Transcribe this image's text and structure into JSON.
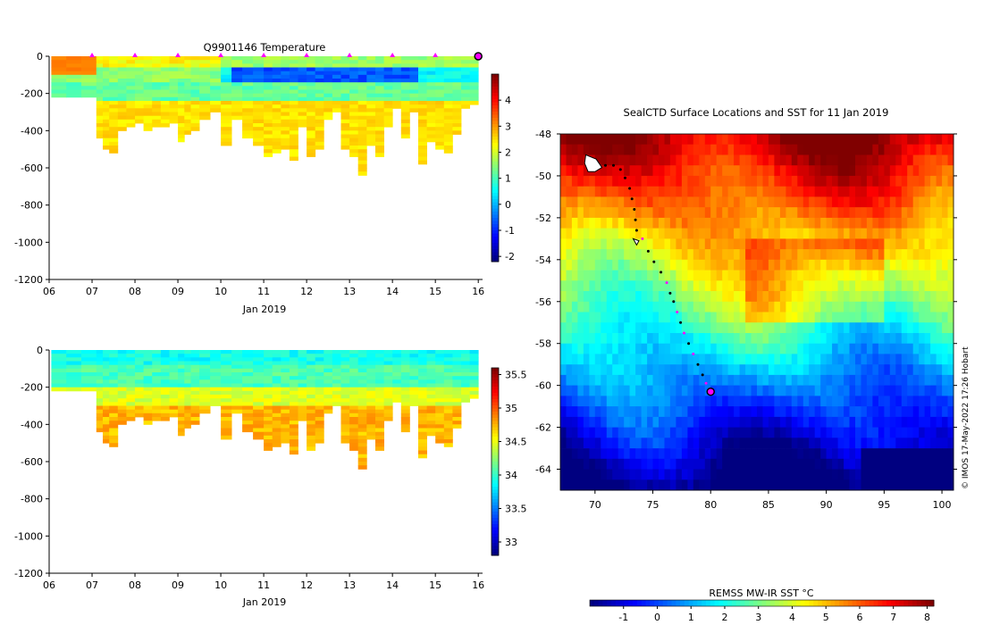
{
  "chart_data": [
    {
      "type": "heatmap",
      "title": "Q9901146  Temperature",
      "xlabel": "Jan 2019",
      "ylabel": "",
      "xticks": [
        "06",
        "07",
        "08",
        "09",
        "10",
        "11",
        "12",
        "13",
        "14",
        "15",
        "16"
      ],
      "xlim": [
        6,
        16.1
      ],
      "ylim": [
        -1200,
        0
      ],
      "yticks": [
        0,
        -200,
        -400,
        -600,
        -800,
        -1000,
        -1200
      ],
      "colorbar": {
        "ticks": [
          4,
          3,
          2,
          1,
          0,
          -1,
          -2
        ],
        "range": [
          -2.2,
          5.0
        ],
        "colormap": "jet"
      },
      "surface_markers_day": [
        7,
        8,
        9,
        10,
        11,
        12,
        13,
        14,
        15
      ],
      "highlight_marker_day": 16,
      "profile_days": [
        6.05,
        6.4,
        6.75,
        7.1,
        7.25,
        7.4,
        7.6,
        7.8,
        8.0,
        8.2,
        8.4,
        8.6,
        8.8,
        9.0,
        9.15,
        9.3,
        9.5,
        9.75,
        10.0,
        10.25,
        10.5,
        10.75,
        11.0,
        11.2,
        11.4,
        11.6,
        11.8,
        12.0,
        12.2,
        12.4,
        12.6,
        12.8,
        13.0,
        13.2,
        13.4,
        13.6,
        13.8,
        14.0,
        14.2,
        14.4,
        14.6,
        14.8,
        15.0,
        15.2,
        15.4,
        15.6,
        15.8,
        16.0
      ],
      "profile_max_depth_m": [
        220,
        205,
        215,
        430,
        485,
        515,
        400,
        365,
        360,
        395,
        380,
        375,
        355,
        445,
        405,
        395,
        330,
        285,
        480,
        335,
        425,
        475,
        530,
        510,
        495,
        545,
        365,
        535,
        500,
        335,
        285,
        485,
        525,
        630,
        465,
        540,
        375,
        265,
        440,
        290,
        575,
        455,
        490,
        510,
        420,
        280,
        245,
        240
      ]
    },
    {
      "type": "heatmap",
      "title": "",
      "xlabel": "Jan 2019",
      "ylabel": "",
      "xticks": [
        "06",
        "07",
        "08",
        "09",
        "10",
        "11",
        "12",
        "13",
        "14",
        "15",
        "16"
      ],
      "xlim": [
        6,
        16.1
      ],
      "ylim": [
        -1200,
        0
      ],
      "yticks": [
        0,
        -200,
        -400,
        -600,
        -800,
        -1000,
        -1200
      ],
      "colorbar": {
        "ticks": [
          35.5,
          35,
          34.5,
          34,
          33.5,
          33
        ],
        "range": [
          32.8,
          35.6
        ],
        "colormap": "jet"
      }
    },
    {
      "type": "heatmap",
      "title": "SealCTD Surface Locations and SST for 11 Jan 2019",
      "xlabel": "",
      "ylabel": "",
      "xlim": [
        67,
        101
      ],
      "ylim": [
        -65,
        -48
      ],
      "xticks": [
        70,
        75,
        80,
        85,
        90,
        95,
        100
      ],
      "yticks": [
        -48,
        -50,
        -52,
        -54,
        -56,
        -58,
        -60,
        -62,
        -64
      ],
      "colorbar": {
        "label": "REMSS MW-IR SST °C",
        "ticks": [
          -1,
          0,
          1,
          2,
          3,
          4,
          5,
          6,
          7,
          8
        ],
        "range": [
          -2,
          8.2
        ],
        "colormap": "jet"
      },
      "track_lon": [
        70.9,
        71.6,
        72.2,
        72.6,
        73.0,
        73.2,
        73.4,
        73.5,
        73.6,
        74.1,
        74.6,
        75.1,
        75.7,
        76.2,
        76.5,
        76.8,
        77.1,
        77.4,
        77.7,
        78.1,
        78.5,
        78.9,
        79.3,
        79.6,
        80.0
      ],
      "track_lat": [
        -49.5,
        -49.5,
        -49.7,
        -50.1,
        -50.6,
        -51.1,
        -51.6,
        -52.1,
        -52.6,
        -53.0,
        -53.6,
        -54.1,
        -54.6,
        -55.1,
        -55.6,
        -56.0,
        -56.5,
        -57.0,
        -57.5,
        -58.0,
        -58.5,
        -59.0,
        -59.5,
        -59.9,
        -60.3
      ],
      "track_magenta_idx": [
        9,
        13,
        16,
        18,
        20,
        23
      ],
      "end_marker": {
        "lon": 80.0,
        "lat": -60.3
      },
      "watermark": "© IMOS 17-May-2022 17:26 Hobart"
    }
  ]
}
